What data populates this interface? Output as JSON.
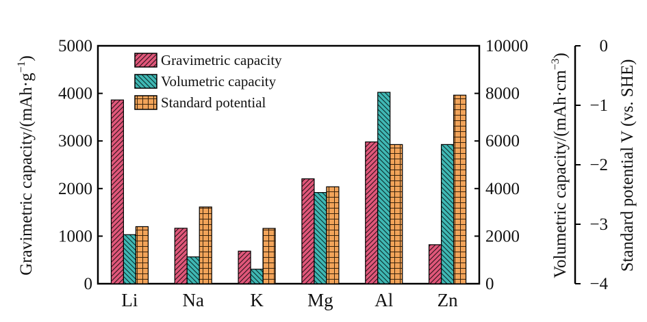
{
  "chart_data": {
    "type": "bar",
    "categories": [
      "Li",
      "Na",
      "K",
      "Mg",
      "Al",
      "Zn"
    ],
    "series": [
      {
        "name": "Gravimetric capacity",
        "axis": "left",
        "color": "#e0577a",
        "pattern": "diagonal-hatch",
        "values": [
          3862,
          1166,
          685,
          2205,
          2980,
          820
        ]
      },
      {
        "name": "Volumetric capacity",
        "axis": "right",
        "color": "#3fb8b4",
        "pattern": "diagonal-hatch",
        "values": [
          2062,
          1128,
          610,
          3833,
          8046,
          5851
        ]
      },
      {
        "name": "Standard potential",
        "axis": "potential",
        "color": "#f2a45a",
        "pattern": "grid",
        "values": [
          -3.04,
          -2.71,
          -3.07,
          -2.37,
          -1.66,
          -0.83
        ]
      }
    ],
    "left_axis": {
      "label_main": "Gravimetric capacity/(mAh·g",
      "label_sup": "−1",
      "label_end": ")",
      "ylim": [
        0,
        5000
      ],
      "ticks": [
        "0",
        "1000",
        "2000",
        "3000",
        "4000",
        "5000"
      ]
    },
    "right_axis": {
      "label_main": "Volumetric capacity/(mAh·cm",
      "label_sup": "−3",
      "label_end": ")",
      "ylim": [
        0,
        10000
      ],
      "ticks": [
        "0",
        "2000",
        "4000",
        "6000",
        "8000",
        "10000"
      ]
    },
    "potential_axis": {
      "label": "Standard potential V (vs. SHE)",
      "ylim": [
        -4,
        0
      ],
      "ticks": [
        "−4",
        "−3",
        "−2",
        "−1",
        "0"
      ]
    },
    "legend_position": "top-left"
  }
}
